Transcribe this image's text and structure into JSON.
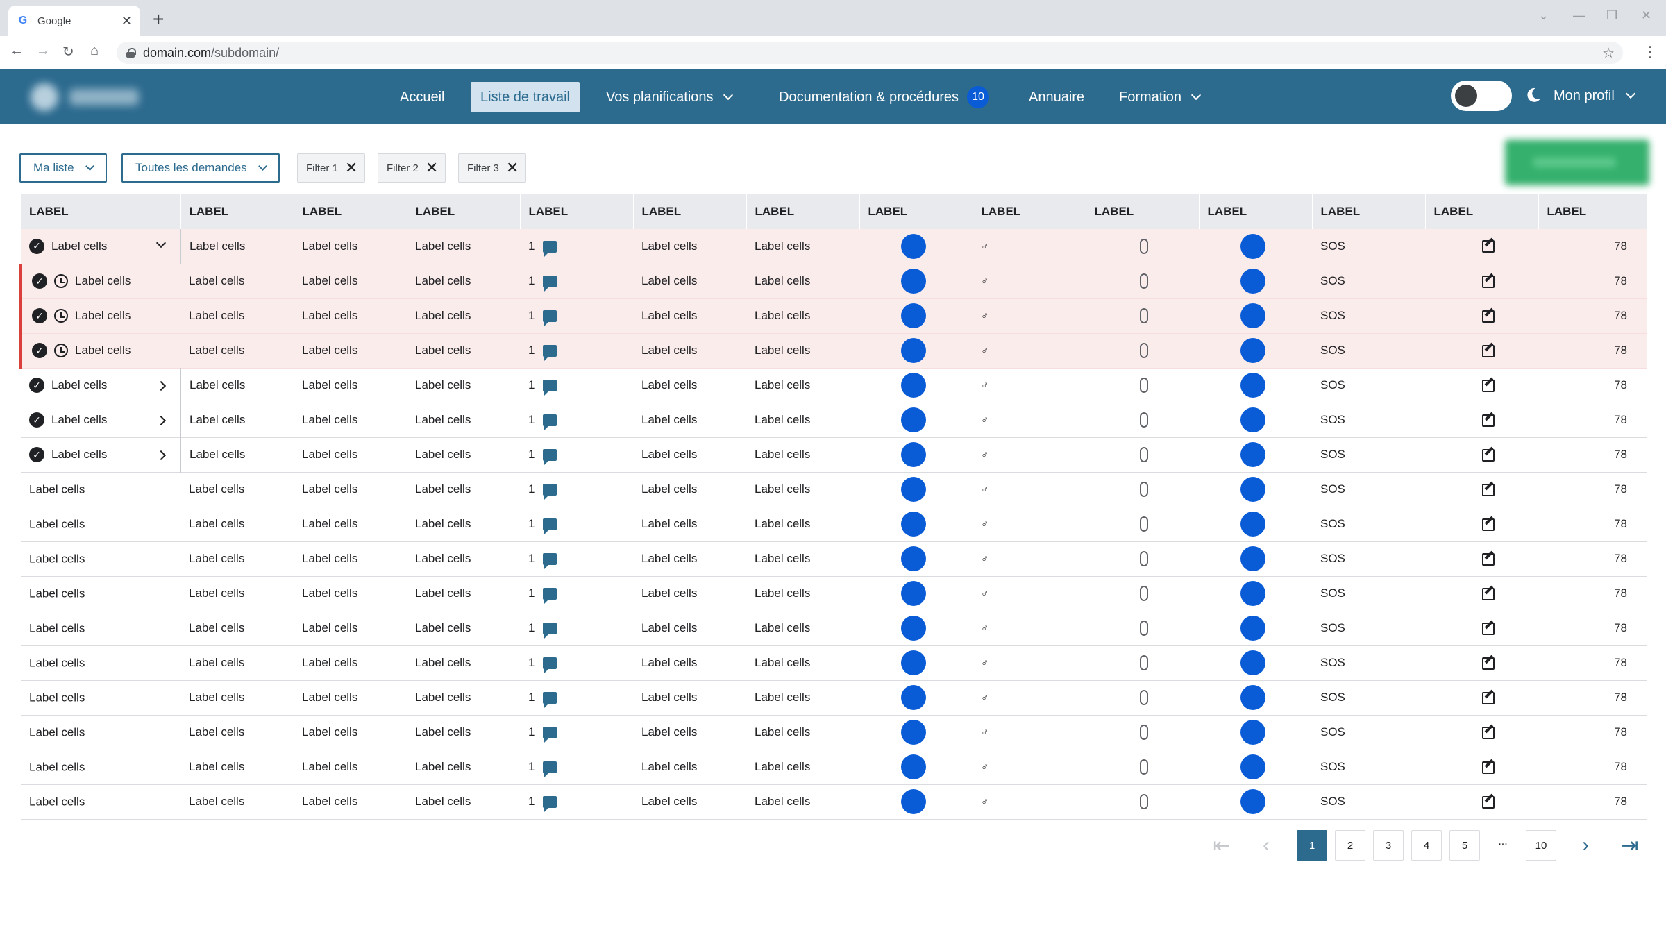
{
  "browser": {
    "tab_title": "Google",
    "tab_icon": "G",
    "url_host": "domain.com",
    "url_path": "/subdomain/"
  },
  "nav": {
    "items": [
      {
        "label": "Accueil"
      },
      {
        "label": "Liste de travail"
      },
      {
        "label": "Vos planifications"
      },
      {
        "label": "Documentation & procédures"
      },
      {
        "label": "Annuaire"
      },
      {
        "label": "Formation"
      }
    ],
    "doc_badge": "10",
    "profile_label": "Mon profil"
  },
  "filters": {
    "dropdown_1": "Ma liste",
    "dropdown_2": "Toutes les demandes",
    "chips": [
      "Filter 1",
      "Filter 2",
      "Filter 3"
    ]
  },
  "table": {
    "headers": [
      "LABEL",
      "LABEL",
      "LABEL",
      "LABEL",
      "LABEL",
      "LABEL",
      "LABEL",
      "LABEL",
      "LABEL",
      "LABEL",
      "LABEL",
      "LABEL",
      "LABEL",
      "LABEL"
    ],
    "cell_label": "Label cells",
    "count": "1",
    "gender_symbol": "♂",
    "status": "SOS",
    "value": "78",
    "row_kinds": [
      "group-open",
      "child",
      "child",
      "child",
      "group",
      "group",
      "group",
      "plain",
      "plain",
      "plain",
      "plain",
      "plain",
      "plain",
      "plain",
      "plain",
      "plain",
      "plain"
    ]
  },
  "pager": {
    "pages": [
      "1",
      "2",
      "3",
      "4",
      "5"
    ],
    "ellipsis": "...",
    "last_page": "10",
    "current": "1"
  },
  "colors": {
    "primary": "#2c6a8e",
    "badge": "#0a5cd6",
    "highlight_row": "#fbecec",
    "child_marker": "#d9403b"
  }
}
